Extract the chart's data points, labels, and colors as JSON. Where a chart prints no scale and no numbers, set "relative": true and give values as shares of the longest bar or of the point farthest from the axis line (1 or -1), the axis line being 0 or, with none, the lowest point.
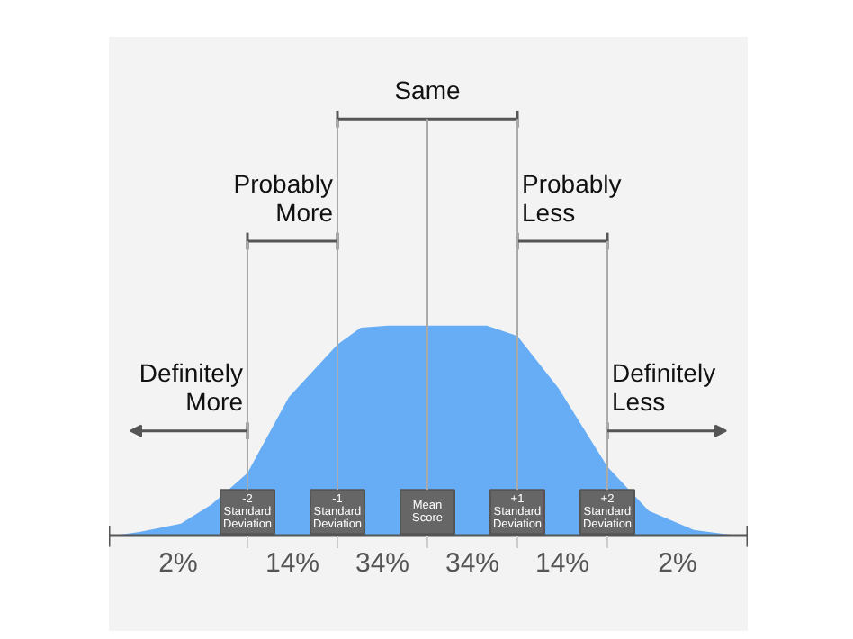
{
  "chart_data": {
    "type": "area",
    "relative": true,
    "x": [
      -3.54,
      -3.2,
      -2.74,
      -2.4,
      -2,
      -1.54,
      -1,
      -0.74,
      -0.44,
      0,
      0.44,
      0.66,
      1,
      1.46,
      2,
      2.46,
      2.96,
      3.3,
      3.56
    ],
    "series": [
      {
        "color": "#66adf5",
        "values": [
          0,
          0.02,
          0.06,
          0.15,
          0.3,
          0.66,
          0.91,
          0.99,
          1,
          1,
          1,
          1,
          0.95,
          0.7,
          0.33,
          0.12,
          0.03,
          0.01,
          0
        ]
      }
    ],
    "xlim": [
      -3.54,
      3.56
    ],
    "xticks": [
      {
        "value": -2,
        "label": "-2\nStandard\nDeviation"
      },
      {
        "value": -1,
        "label": "-1\nStandard\nDeviation"
      },
      {
        "value": 0,
        "label": "Mean\nScore"
      },
      {
        "value": 1,
        "label": "+1\nStandard\nDeviation"
      },
      {
        "value": 2,
        "label": "+2\nStandard\nDeviation"
      }
    ],
    "ref_lines": [
      {
        "axis": "x",
        "value": -2
      },
      {
        "axis": "x",
        "value": -1
      },
      {
        "axis": "x",
        "value": 0
      },
      {
        "axis": "x",
        "value": 1
      },
      {
        "axis": "x",
        "value": 2
      }
    ],
    "annotations": [
      "Same",
      "Probably\nMore",
      "Probably\nLess",
      "Definitely\nMore",
      "Definitely\nLess",
      "2%",
      "14%",
      "34%",
      "34%",
      "14%",
      "2%"
    ]
  }
}
